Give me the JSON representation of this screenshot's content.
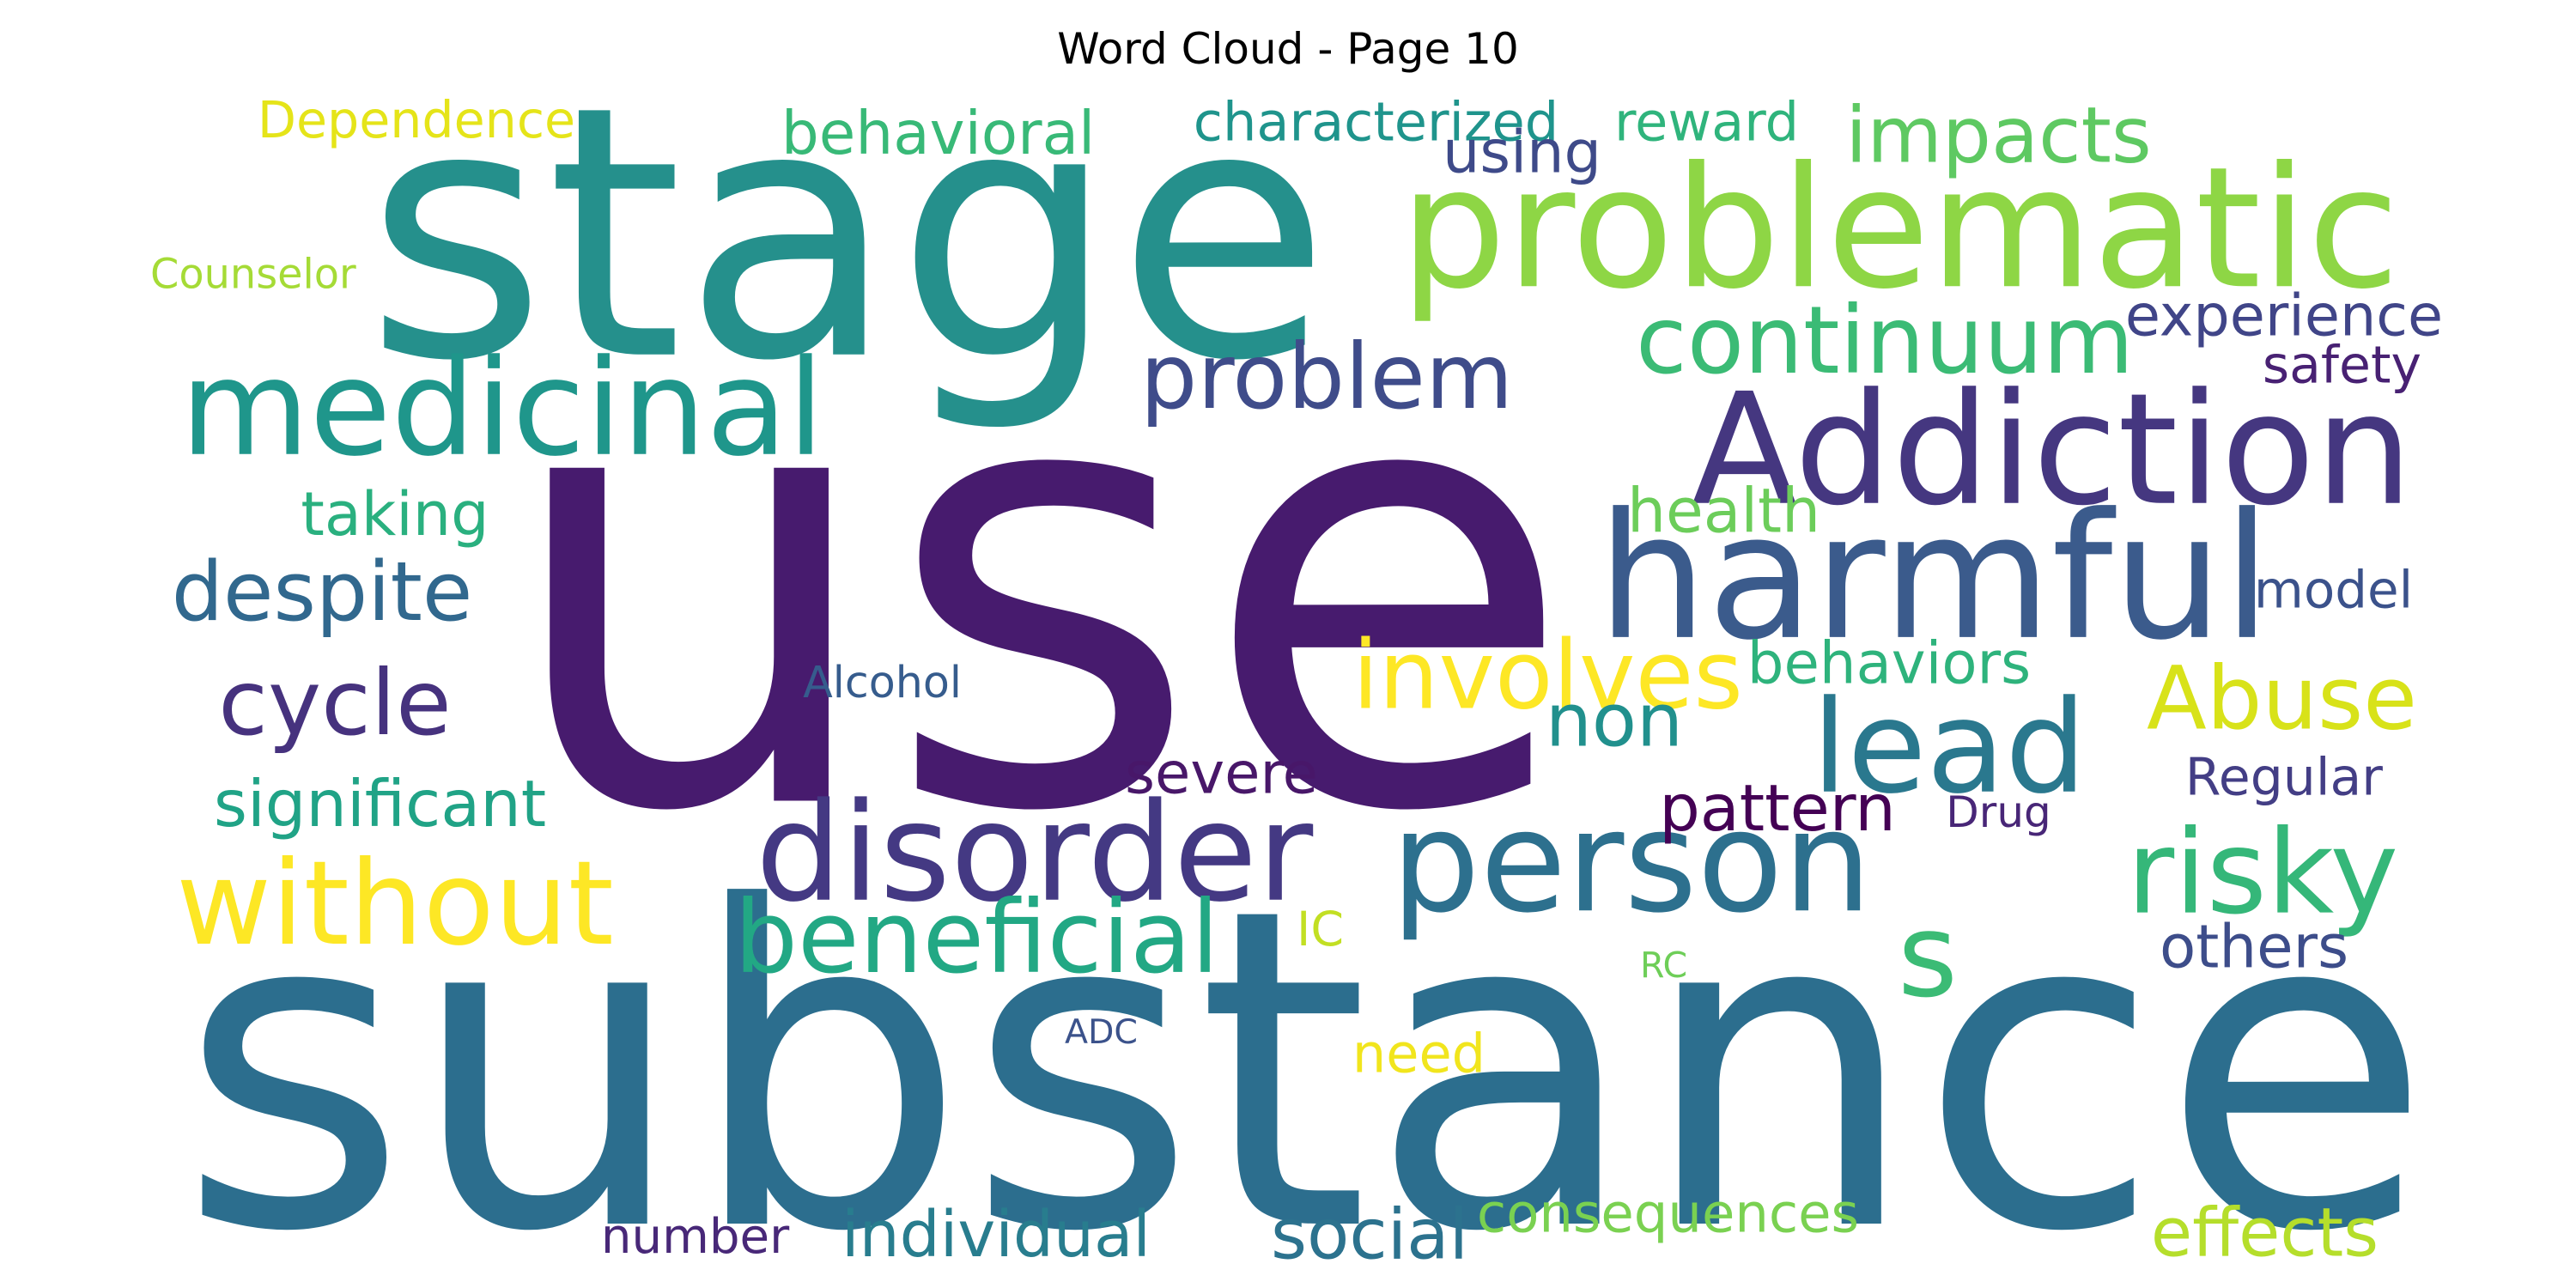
{
  "title": "Word Cloud - Page 10",
  "words": [
    {
      "text": "use",
      "color": "#471b6e"
    },
    {
      "text": "substance",
      "color": "#2c6e8e"
    },
    {
      "text": "stage",
      "color": "#25908c"
    },
    {
      "text": "problematic",
      "color": "#8ed645"
    },
    {
      "text": "Addiction",
      "color": "#453780"
    },
    {
      "text": "harmful",
      "color": "#3b5b8c"
    },
    {
      "text": "medicinal",
      "color": "#1f968b"
    },
    {
      "text": "person",
      "color": "#2d708e"
    },
    {
      "text": "disorder",
      "color": "#443983"
    },
    {
      "text": "problem",
      "color": "#3f4c8a"
    },
    {
      "text": "impacts",
      "color": "#5ec962"
    },
    {
      "text": "continuum",
      "color": "#3bbb75"
    },
    {
      "text": "risky",
      "color": "#35b779"
    },
    {
      "text": "lead",
      "color": "#2a788e"
    },
    {
      "text": "without",
      "color": "#fde725"
    },
    {
      "text": "despite",
      "color": "#31688e"
    },
    {
      "text": "cycle",
      "color": "#46327e"
    },
    {
      "text": "Abuse",
      "color": "#d8e219"
    },
    {
      "text": "involves",
      "color": "#fde725"
    },
    {
      "text": "beneficial",
      "color": "#22a884"
    },
    {
      "text": "non",
      "color": "#21908d"
    },
    {
      "text": "s",
      "color": "#3bbb75"
    },
    {
      "text": "significant",
      "color": "#20a386"
    },
    {
      "text": "pattern",
      "color": "#440154"
    },
    {
      "text": "Dependence",
      "color": "#e5e419"
    },
    {
      "text": "behavioral",
      "color": "#38b977"
    },
    {
      "text": "characterized",
      "color": "#1f948c"
    },
    {
      "text": "reward",
      "color": "#2fb47c"
    },
    {
      "text": "using",
      "color": "#3e4a89"
    },
    {
      "text": "experience",
      "color": "#404588"
    },
    {
      "text": "safety",
      "color": "#482173"
    },
    {
      "text": "taking",
      "color": "#2ab07f"
    },
    {
      "text": "health",
      "color": "#6ccd5a"
    },
    {
      "text": "model",
      "color": "#3b528b"
    },
    {
      "text": "Counselor",
      "color": "#a5db36"
    },
    {
      "text": "behaviors",
      "color": "#2eb37c"
    },
    {
      "text": "Alcohol",
      "color": "#365c8d"
    },
    {
      "text": "severe",
      "color": "#481769"
    },
    {
      "text": "Regular",
      "color": "#433e85"
    },
    {
      "text": "Drug",
      "color": "#482677"
    },
    {
      "text": "IC",
      "color": "#c2df23"
    },
    {
      "text": "RC",
      "color": "#6ece58"
    },
    {
      "text": "others",
      "color": "#3d4d8a"
    },
    {
      "text": "ADC",
      "color": "#3b528b"
    },
    {
      "text": "need",
      "color": "#f1e51d"
    },
    {
      "text": "number",
      "color": "#482878"
    },
    {
      "text": "individual",
      "color": "#287d8e"
    },
    {
      "text": "social",
      "color": "#2c728e"
    },
    {
      "text": "consequences",
      "color": "#7ad151"
    },
    {
      "text": "effects",
      "color": "#b5de2b"
    }
  ]
}
